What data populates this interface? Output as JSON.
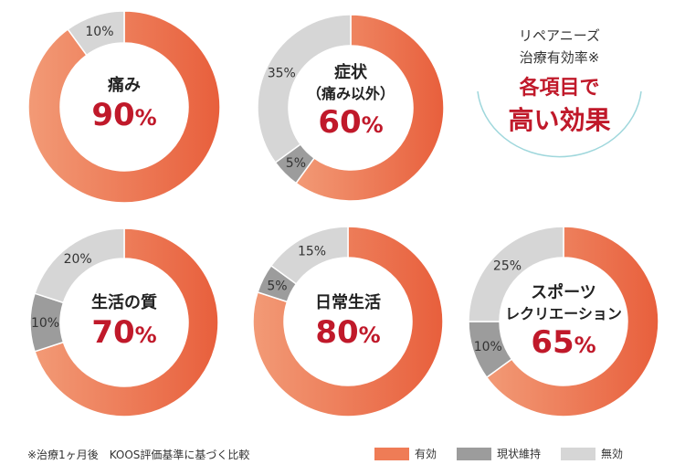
{
  "colors": {
    "effective": "#ef7c56",
    "effective_dark": "#e85f3c",
    "maintained": "#9c9c9c",
    "ineffective": "#d6d6d6",
    "accent": "#c0192a"
  },
  "chart_data": [
    {
      "type": "pie",
      "label": "痛み",
      "center_value": "90",
      "slices": [
        {
          "name": "有効",
          "value": 90,
          "label": ""
        },
        {
          "name": "無効",
          "value": 10,
          "label": "10%"
        }
      ]
    },
    {
      "type": "pie",
      "label": "症状",
      "sublabel": "（痛み以外）",
      "center_value": "60",
      "slices": [
        {
          "name": "有効",
          "value": 60,
          "label": ""
        },
        {
          "name": "現状維持",
          "value": 5,
          "label": "5%"
        },
        {
          "name": "無効",
          "value": 35,
          "label": "35%"
        }
      ]
    },
    {
      "type": "pie",
      "label": "生活の質",
      "center_value": "70",
      "slices": [
        {
          "name": "有効",
          "value": 70,
          "label": ""
        },
        {
          "name": "現状維持",
          "value": 10,
          "label": "10%"
        },
        {
          "name": "無効",
          "value": 20,
          "label": "20%"
        }
      ]
    },
    {
      "type": "pie",
      "label": "日常生活",
      "center_value": "80",
      "slices": [
        {
          "name": "有効",
          "value": 80,
          "label": ""
        },
        {
          "name": "現状維持",
          "value": 5,
          "label": "5%"
        },
        {
          "name": "無効",
          "value": 15,
          "label": "15%"
        }
      ]
    },
    {
      "type": "pie",
      "label": "スポーツ",
      "sublabel": "レクリエーション",
      "center_value": "65",
      "slices": [
        {
          "name": "有効",
          "value": 65,
          "label": ""
        },
        {
          "name": "現状維持",
          "value": 10,
          "label": "10%"
        },
        {
          "name": "無効",
          "value": 25,
          "label": "25%"
        }
      ]
    }
  ],
  "percent_sign": "%",
  "callout": {
    "line1": "リペアニーズ",
    "line2": "治療有効率※",
    "line3": "各項目で",
    "line4": "高い効果"
  },
  "footnote": "※治療1ヶ月後　KOOS評価基準に基づく比較",
  "legend": [
    {
      "name": "有効",
      "color": "#ef7c56"
    },
    {
      "name": "現状維持",
      "color": "#9c9c9c"
    },
    {
      "name": "無効",
      "color": "#d6d6d6"
    }
  ]
}
